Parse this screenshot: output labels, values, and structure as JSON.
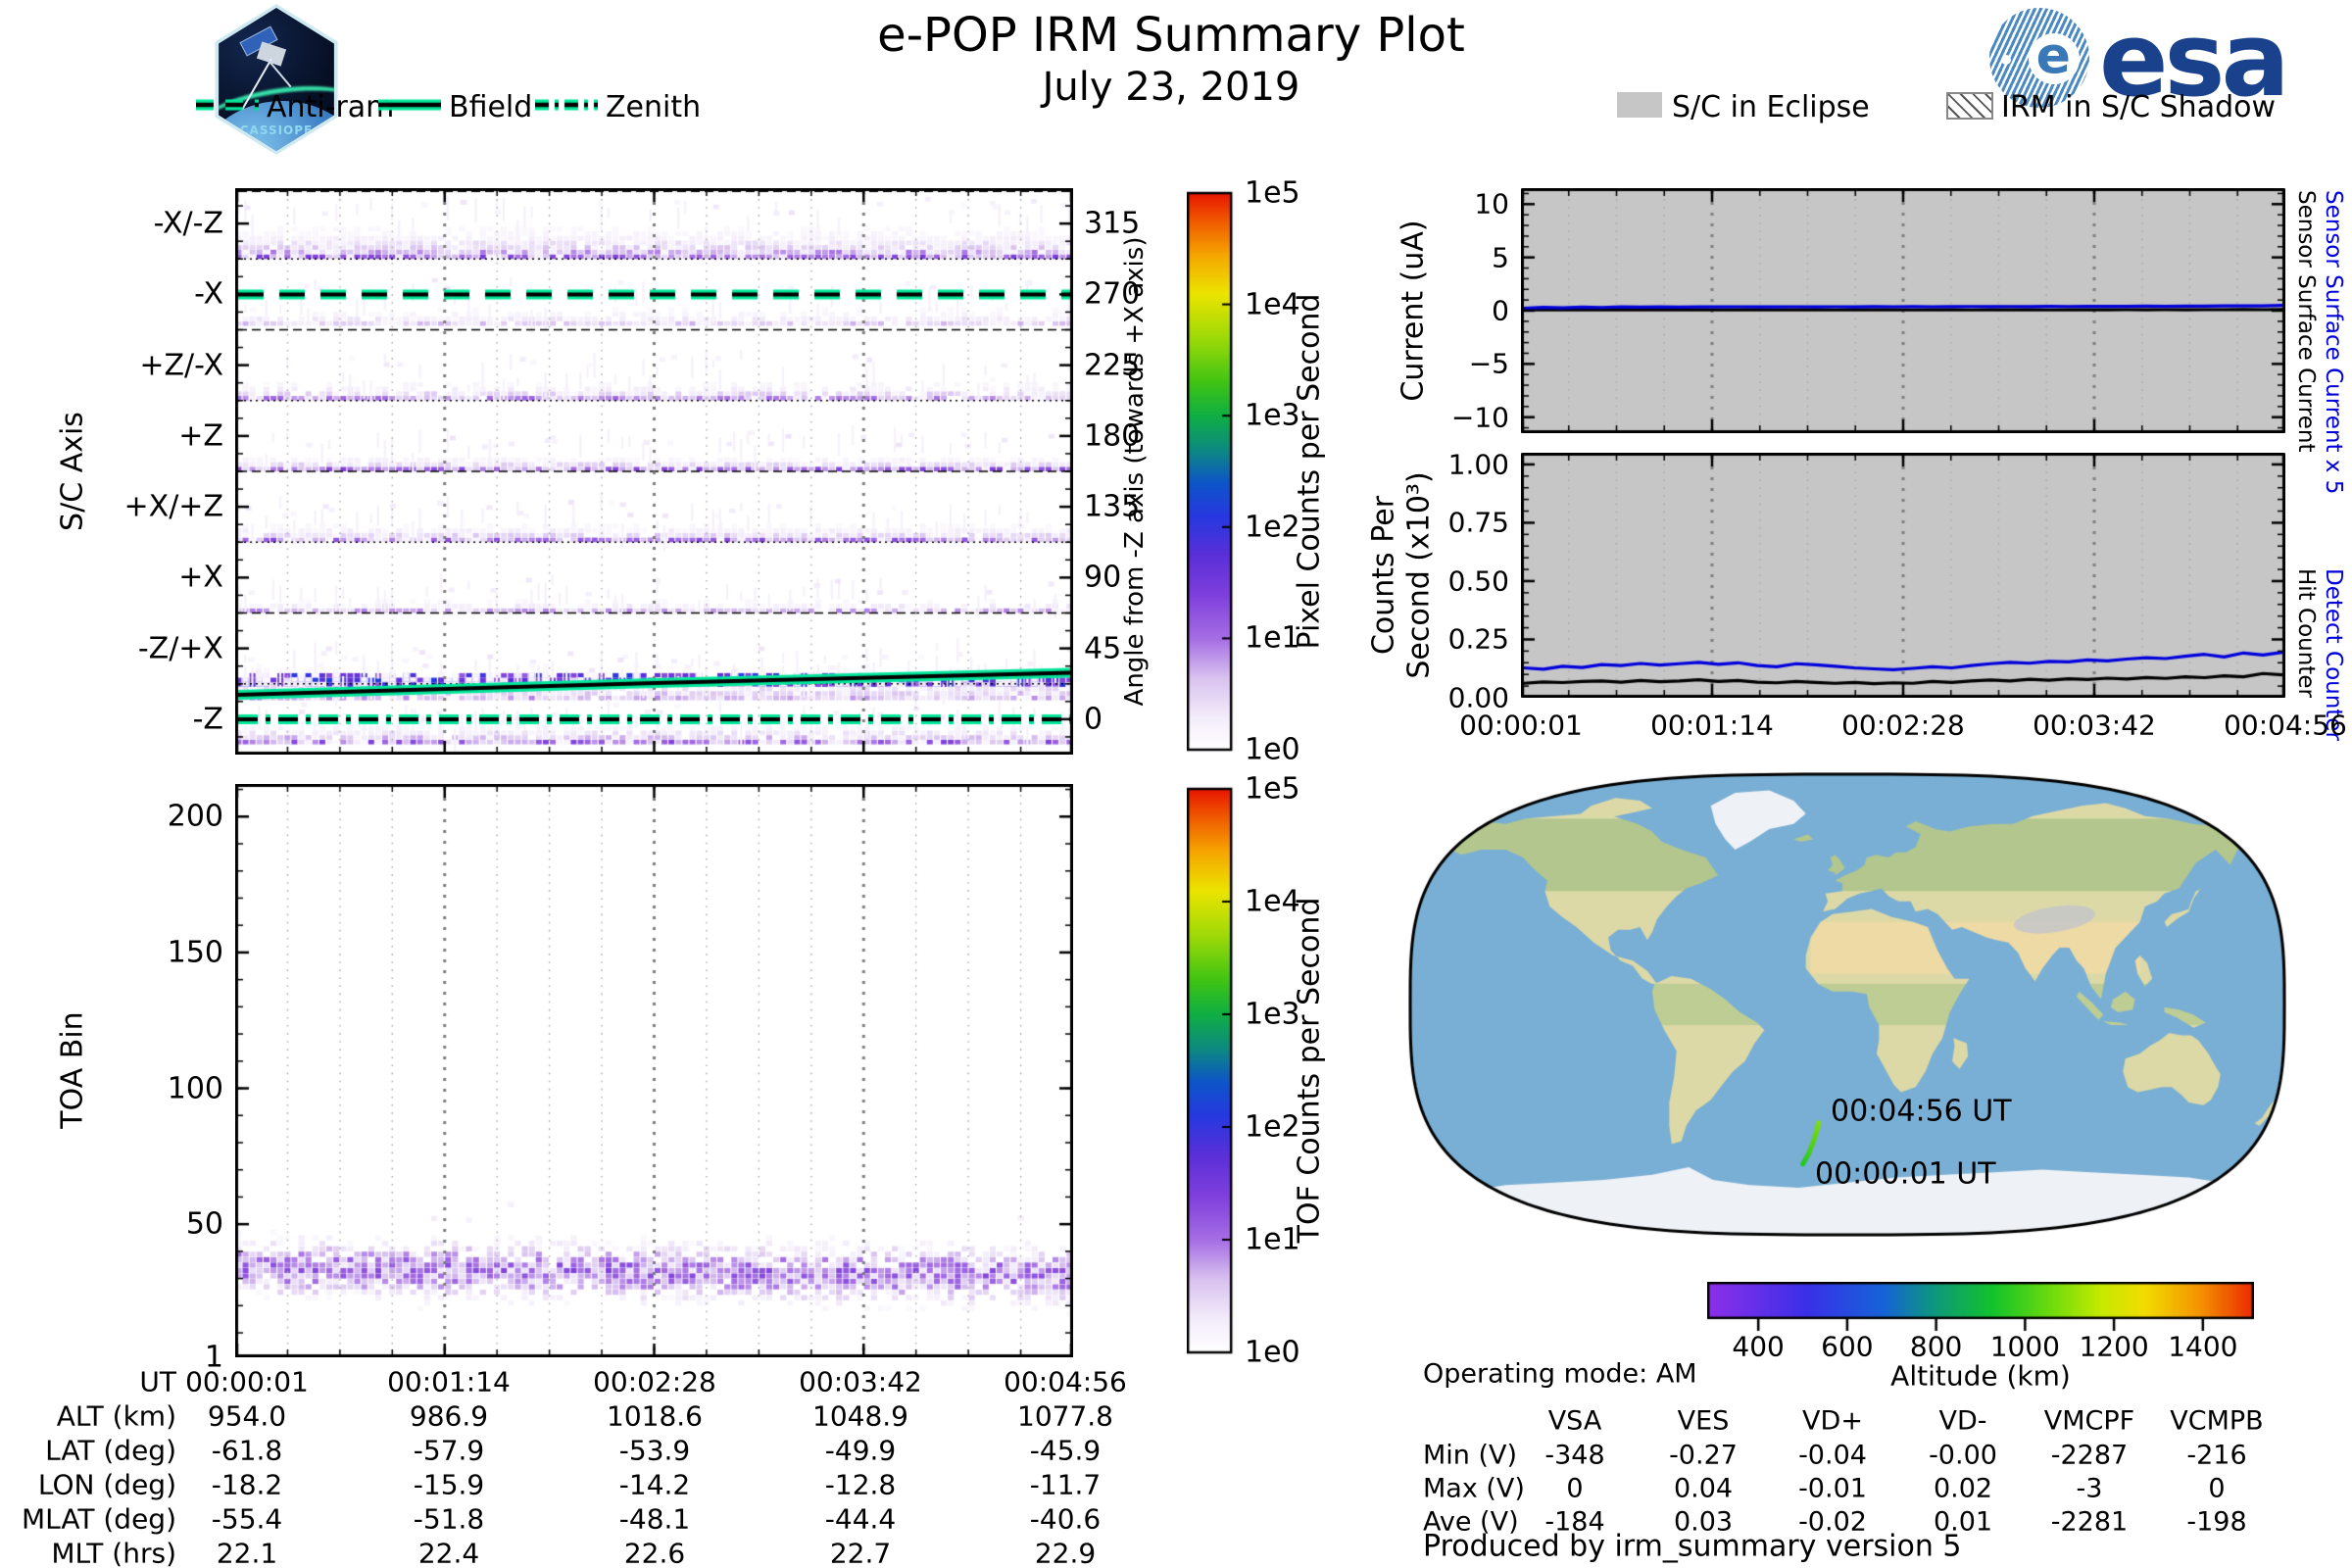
{
  "header": {
    "title": "e-POP IRM Summary Plot",
    "date": "July 23, 2019",
    "cassiope_label": "CASSIOPE",
    "esa_label": "esa"
  },
  "colors": {
    "accent_teal": "#00e69a",
    "line_blue": "#0000dd",
    "line_black": "#000000",
    "eclipse_gray": "#c6c6c6",
    "esa_blue": "#1a418c",
    "ocean": "#79afd4",
    "land": "#ddd9a6",
    "ice": "#eef2f6",
    "track_green": "#3ecc1e"
  },
  "legend_left": {
    "items": [
      {
        "label": "Anti-ram",
        "style": "dashed"
      },
      {
        "label": "Bfield",
        "style": "solid"
      },
      {
        "label": "Zenith",
        "style": "dashdot"
      }
    ]
  },
  "legend_right": {
    "items": [
      {
        "label": "S/C in Eclipse",
        "style": "filled-gray"
      },
      {
        "label": "IRM in S/C Shadow",
        "style": "hatched"
      }
    ]
  },
  "chart_data": [
    {
      "id": "sc_axis_pixel_counts",
      "type": "heatmap",
      "ylabel": "S/C Axis",
      "y2label": "Angle from -Z axis (towards +X axis)",
      "rows": [
        {
          "label": "-X/-Z",
          "angle_deg": 315
        },
        {
          "label": "-X",
          "angle_deg": 270
        },
        {
          "label": "+Z/-X",
          "angle_deg": 225
        },
        {
          "label": "+Z",
          "angle_deg": 180
        },
        {
          "label": "+X/+Z",
          "angle_deg": 135
        },
        {
          "label": "+X",
          "angle_deg": 90
        },
        {
          "label": "-Z/+X",
          "angle_deg": 45
        },
        {
          "label": "-Z",
          "angle_deg": 0
        }
      ],
      "angle_tick_labels": [
        "315",
        "270",
        "225",
        "180",
        "135",
        "90",
        "45",
        "0"
      ],
      "angle_ticks": [
        315,
        270,
        225,
        180,
        135,
        90,
        45,
        0
      ],
      "angle_range_deg": [
        -22.5,
        337.5
      ],
      "time_range": [
        "00:00:01",
        "00:04:56"
      ],
      "colorbar": {
        "label": "Pixel Counts per Second",
        "scale": "log",
        "tick_labels": [
          "1e5",
          "1e4",
          "1e3",
          "1e2",
          "1e1",
          "1e0"
        ],
        "range": [
          1,
          100000
        ]
      },
      "bands": [
        {
          "row": "-X/-Z",
          "angle_from": 292.5,
          "angle_to": 319,
          "peak_counts_per_s": 8,
          "density": 1.0,
          "falloff_deg": 9
        },
        {
          "row": "-X",
          "angle_from": 250,
          "angle_to": 268,
          "peak_counts_per_s": 2,
          "density": 0.5,
          "falloff_deg": 6
        },
        {
          "row": "+Z/-X",
          "angle_from": 202.5,
          "angle_to": 219,
          "peak_counts_per_s": 4,
          "density": 0.6,
          "falloff_deg": 6
        },
        {
          "row": "+Z",
          "angle_from": 157.5,
          "angle_to": 171,
          "peak_counts_per_s": 7,
          "density": 0.95,
          "falloff_deg": 4
        },
        {
          "row": "+X/+Z",
          "angle_from": 112.5,
          "angle_to": 127,
          "peak_counts_per_s": 6,
          "density": 0.85,
          "falloff_deg": 5
        },
        {
          "row": "+X",
          "angle_from": 67.5,
          "angle_to": 77,
          "peak_counts_per_s": 3,
          "density": 0.55,
          "falloff_deg": 4
        },
        {
          "row": "-Z/+X",
          "angle_from": 20.5,
          "angle_to": 29,
          "peak_counts_per_s": 45,
          "density": 1.0,
          "uniform": true
        },
        {
          "row": "-Z/+X",
          "angle_from": 12,
          "angle_to": 38,
          "peak_counts_per_s": 3,
          "density": 0.45,
          "falloff_deg": 12
        },
        {
          "row": "-Z",
          "angle_from": -16,
          "angle_to": -2,
          "peak_counts_per_s": 7,
          "density": 0.9,
          "falloff_deg": 6
        }
      ],
      "overlays": [
        {
          "name": "Anti-ram",
          "style": "dashed",
          "angle_deg_start": 270,
          "angle_deg_end": 270
        },
        {
          "name": "Bfield",
          "style": "solid",
          "angle_deg_start": 15.5,
          "angle_deg_end": 29.5
        },
        {
          "name": "Zenith",
          "style": "dashdot",
          "angle_deg_start": 0,
          "angle_deg_end": 0
        }
      ]
    },
    {
      "id": "toa_tof_counts",
      "type": "heatmap",
      "ylabel": "TOA Bin",
      "y_tick_labels": [
        "200",
        "150",
        "100",
        "50",
        "1"
      ],
      "y_ticks": [
        200,
        150,
        100,
        50,
        1
      ],
      "y_range": [
        1,
        212
      ],
      "band": {
        "bin_from": 14,
        "bin_to": 50,
        "bin_center": 33,
        "peak_counts_per_s": 5
      },
      "colorbar": {
        "label": "TOF Counts per Second",
        "scale": "log",
        "tick_labels": [
          "1e5",
          "1e4",
          "1e3",
          "1e2",
          "1e1",
          "1e0"
        ],
        "range": [
          1,
          100000
        ]
      }
    },
    {
      "id": "sensor_surface_current",
      "type": "line",
      "ylabel": "Current (uA)",
      "y_tick_labels": [
        "10",
        "5",
        "0",
        "−5",
        "−10"
      ],
      "y_ticks": [
        10,
        5,
        0,
        -5,
        -10
      ],
      "ylim": [
        -11.5,
        11.5
      ],
      "background": "sc_in_eclipse",
      "right_labels": [
        {
          "text": "Sensor Surface Current x 5",
          "color": "#0000dd"
        },
        {
          "text": "Sensor Surface Current",
          "color": "#000000"
        }
      ],
      "series": [
        {
          "name": "Sensor Surface Current x 5",
          "color": "#0000dd",
          "values": [
            0.22,
            0.31,
            0.26,
            0.34,
            0.3,
            0.36,
            0.33,
            0.36,
            0.34,
            0.36,
            0.35,
            0.37,
            0.36,
            0.36,
            0.37,
            0.36,
            0.37,
            0.36,
            0.38,
            0.37,
            0.38,
            0.37,
            0.38,
            0.39,
            0.38,
            0.39,
            0.38,
            0.4,
            0.39,
            0.41,
            0.4,
            0.41,
            0.42,
            0.41,
            0.43,
            0.42,
            0.44,
            0.45,
            0.44,
            0.5
          ]
        },
        {
          "name": "Sensor Surface Current",
          "color": "#000000",
          "values": [
            0.07,
            0.08,
            0.07,
            0.08,
            0.08,
            0.07,
            0.08,
            0.07,
            0.08,
            0.08,
            0.07,
            0.08,
            0.08,
            0.07,
            0.08,
            0.08,
            0.07,
            0.08,
            0.08,
            0.08,
            0.07,
            0.08,
            0.08,
            0.07,
            0.08,
            0.08,
            0.08,
            0.07,
            0.08,
            0.08,
            0.08,
            0.09,
            0.08,
            0.09,
            0.08,
            0.09,
            0.09,
            0.1,
            0.09,
            0.1
          ]
        }
      ]
    },
    {
      "id": "counters",
      "type": "line",
      "ylabel_lines": [
        "Counts Per",
        "Second (x10³)"
      ],
      "y_tick_labels": [
        "1.00",
        "0.75",
        "0.50",
        "0.25",
        "0.00"
      ],
      "y_ticks": [
        1.0,
        0.75,
        0.5,
        0.25,
        0.0
      ],
      "ylim": [
        0,
        1.05
      ],
      "background": "sc_in_eclipse",
      "x_tick_labels": [
        "00:00:01",
        "00:01:14",
        "00:02:28",
        "00:03:42",
        "00:04:56"
      ],
      "right_labels": [
        {
          "text": "Detect Counter",
          "color": "#0000dd"
        },
        {
          "text": "Hit Counter",
          "color": "#000000"
        }
      ],
      "series": [
        {
          "name": "Detect Counter",
          "color": "#0000dd",
          "values": [
            0.128,
            0.122,
            0.135,
            0.13,
            0.142,
            0.138,
            0.147,
            0.14,
            0.146,
            0.152,
            0.143,
            0.15,
            0.138,
            0.133,
            0.146,
            0.141,
            0.135,
            0.128,
            0.124,
            0.12,
            0.126,
            0.133,
            0.128,
            0.138,
            0.146,
            0.152,
            0.148,
            0.156,
            0.154,
            0.162,
            0.158,
            0.166,
            0.172,
            0.168,
            0.178,
            0.186,
            0.175,
            0.192,
            0.183,
            0.195
          ]
        },
        {
          "name": "Hit Counter",
          "color": "#000000",
          "values": [
            0.062,
            0.068,
            0.065,
            0.07,
            0.072,
            0.067,
            0.074,
            0.069,
            0.072,
            0.077,
            0.07,
            0.074,
            0.067,
            0.064,
            0.07,
            0.066,
            0.062,
            0.066,
            0.06,
            0.064,
            0.062,
            0.07,
            0.066,
            0.072,
            0.076,
            0.072,
            0.079,
            0.075,
            0.081,
            0.078,
            0.084,
            0.08,
            0.087,
            0.083,
            0.09,
            0.086,
            0.094,
            0.09,
            0.104,
            0.098
          ]
        }
      ]
    },
    {
      "id": "ground_track_map",
      "type": "map",
      "track": {
        "color_by": "altitude",
        "points": [
          {
            "ut": "00:00:01",
            "lat": -61.8,
            "lon": -18.2,
            "alt_km": 954.0
          },
          {
            "ut": "00:01:14",
            "lat": -57.9,
            "lon": -15.9,
            "alt_km": 986.9
          },
          {
            "ut": "00:02:28",
            "lat": -53.9,
            "lon": -14.2,
            "alt_km": 1018.6
          },
          {
            "ut": "00:03:42",
            "lat": -49.9,
            "lon": -12.8,
            "alt_km": 1048.9
          },
          {
            "ut": "00:04:56",
            "lat": -45.9,
            "lon": -11.7,
            "alt_km": 1077.8
          }
        ]
      },
      "labels": {
        "end": "00:04:56 UT",
        "start": "00:00:01 UT"
      },
      "altitude_bar": {
        "label": "Altitude (km)",
        "tick_labels": [
          "400",
          "600",
          "800",
          "1000",
          "1200",
          "1400"
        ],
        "ticks_km": [
          400,
          600,
          800,
          1000,
          1200,
          1400
        ],
        "range_km": [
          285,
          1515
        ]
      }
    }
  ],
  "ephemeris_table": {
    "rows": [
      {
        "label": "UT",
        "values": [
          "00:00:01",
          "00:01:14",
          "00:02:28",
          "00:03:42",
          "00:04:56"
        ]
      },
      {
        "label": "ALT (km)",
        "values": [
          "954.0",
          "986.9",
          "1018.6",
          "1048.9",
          "1077.8"
        ]
      },
      {
        "label": "LAT (deg)",
        "values": [
          "-61.8",
          "-57.9",
          "-53.9",
          "-49.9",
          "-45.9"
        ]
      },
      {
        "label": "LON (deg)",
        "values": [
          "-18.2",
          "-15.9",
          "-14.2",
          "-12.8",
          "-11.7"
        ]
      },
      {
        "label": "MLAT (deg)",
        "values": [
          "-55.4",
          "-51.8",
          "-48.1",
          "-44.4",
          "-40.6"
        ]
      },
      {
        "label": "MLT (hrs)",
        "values": [
          "22.1",
          "22.4",
          "22.6",
          "22.7",
          "22.9"
        ]
      }
    ]
  },
  "voltage_table": {
    "columns": [
      "VSA",
      "VES",
      "VD+",
      "VD-",
      "VMCPF",
      "VCMPB"
    ],
    "rows": [
      {
        "label": "Min (V)",
        "values": [
          "-348",
          "-0.27",
          "-0.04",
          "-0.00",
          "-2287",
          "-216"
        ]
      },
      {
        "label": "Max (V)",
        "values": [
          "0",
          "0.04",
          "-0.01",
          "0.02",
          "-3",
          "0"
        ]
      },
      {
        "label": "Ave (V)",
        "values": [
          "-184",
          "0.03",
          "-0.02",
          "0.01",
          "-2281",
          "-198"
        ]
      }
    ]
  },
  "status": {
    "operating_mode": "Operating mode: AM",
    "produced_by": "Produced by irm_summary version 5"
  }
}
